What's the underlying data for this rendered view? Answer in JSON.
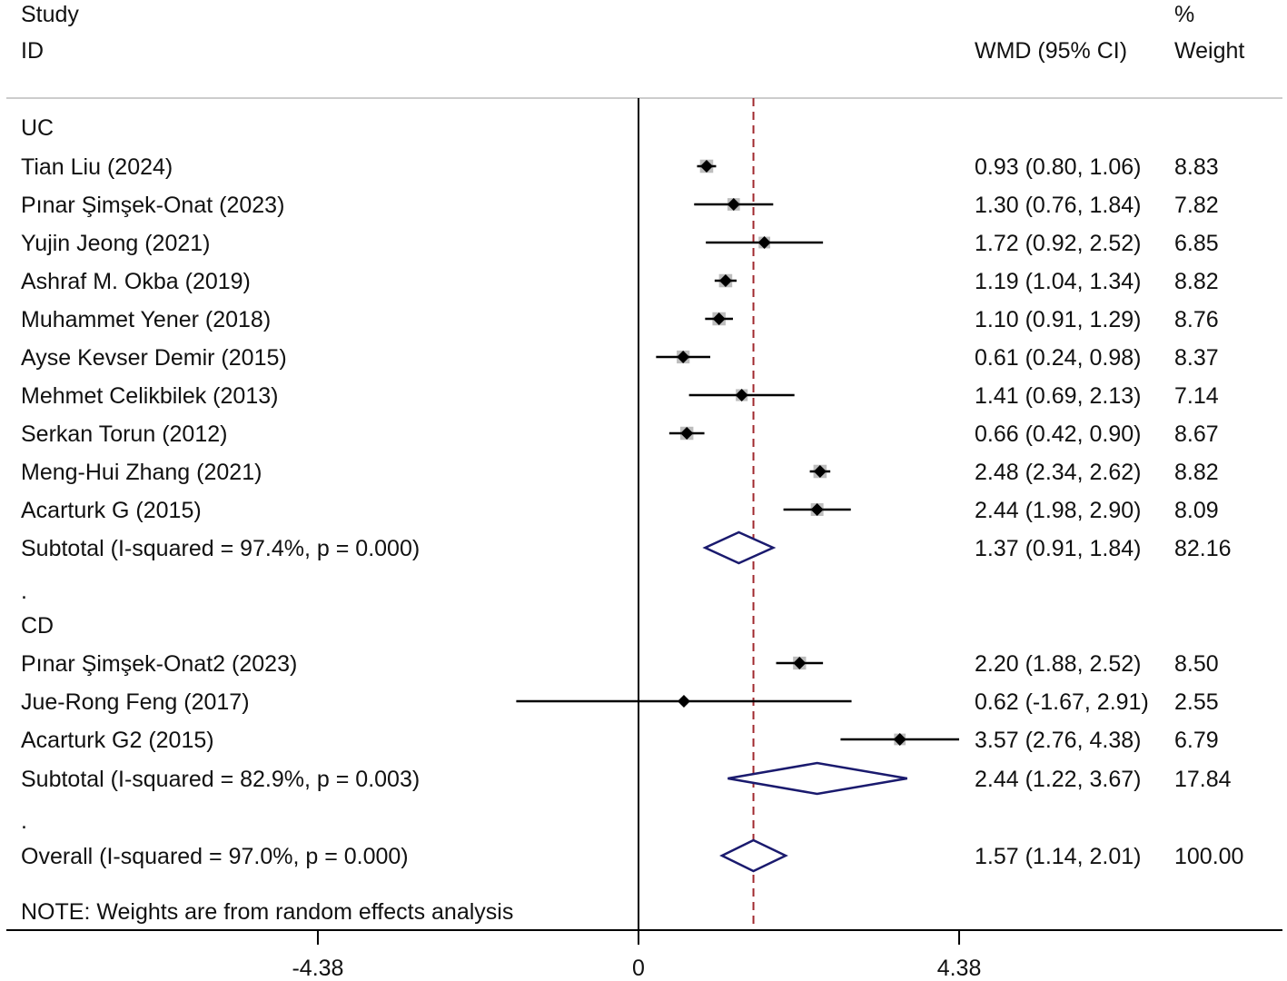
{
  "chart_data": {
    "type": "forest",
    "header": {
      "study_line1": "Study",
      "study_line2": "ID",
      "pct_line1": "%",
      "effect_label": "WMD (95% CI)",
      "weight_label": "Weight"
    },
    "groups": [
      {
        "name": "UC",
        "studies": [
          {
            "label": "Tian Liu (2024)",
            "est": 0.93,
            "lo": 0.8,
            "hi": 1.06,
            "ci_text": "0.93 (0.80, 1.06)",
            "weight": 8.83,
            "weight_text": "8.83"
          },
          {
            "label": "Pınar Şimşek-Onat (2023)",
            "est": 1.3,
            "lo": 0.76,
            "hi": 1.84,
            "ci_text": "1.30 (0.76, 1.84)",
            "weight": 7.82,
            "weight_text": "7.82"
          },
          {
            "label": "Yujin Jeong (2021)",
            "est": 1.72,
            "lo": 0.92,
            "hi": 2.52,
            "ci_text": "1.72 (0.92, 2.52)",
            "weight": 6.85,
            "weight_text": "6.85"
          },
          {
            "label": "Ashraf M. Okba (2019)",
            "est": 1.19,
            "lo": 1.04,
            "hi": 1.34,
            "ci_text": "1.19 (1.04, 1.34)",
            "weight": 8.82,
            "weight_text": "8.82"
          },
          {
            "label": "Muhammet Yener (2018)",
            "est": 1.1,
            "lo": 0.91,
            "hi": 1.29,
            "ci_text": "1.10 (0.91, 1.29)",
            "weight": 8.76,
            "weight_text": "8.76"
          },
          {
            "label": "Ayse Kevser Demir (2015)",
            "est": 0.61,
            "lo": 0.24,
            "hi": 0.98,
            "ci_text": "0.61 (0.24, 0.98)",
            "weight": 8.37,
            "weight_text": "8.37"
          },
          {
            "label": "Mehmet Celikbilek (2013)",
            "est": 1.41,
            "lo": 0.69,
            "hi": 2.13,
            "ci_text": "1.41 (0.69, 2.13)",
            "weight": 7.14,
            "weight_text": "7.14"
          },
          {
            "label": "Serkan Torun (2012)",
            "est": 0.66,
            "lo": 0.42,
            "hi": 0.9,
            "ci_text": "0.66 (0.42, 0.90)",
            "weight": 8.67,
            "weight_text": "8.67"
          },
          {
            "label": "Meng-Hui Zhang (2021)",
            "est": 2.48,
            "lo": 2.34,
            "hi": 2.62,
            "ci_text": "2.48 (2.34, 2.62)",
            "weight": 8.82,
            "weight_text": "8.82"
          },
          {
            "label": "Acarturk G (2015)",
            "est": 2.44,
            "lo": 1.98,
            "hi": 2.9,
            "ci_text": "2.44 (1.98, 2.90)",
            "weight": 8.09,
            "weight_text": "8.09"
          }
        ],
        "subtotal": {
          "label": "Subtotal  (I-squared = 97.4%, p = 0.000)",
          "est": 1.37,
          "lo": 0.91,
          "hi": 1.84,
          "ci_text": "1.37 (0.91, 1.84)",
          "weight_text": "82.16"
        },
        "separator": "."
      },
      {
        "name": "CD",
        "studies": [
          {
            "label": "Pınar Şimşek-Onat2 (2023)",
            "est": 2.2,
            "lo": 1.88,
            "hi": 2.52,
            "ci_text": "2.20 (1.88, 2.52)",
            "weight": 8.5,
            "weight_text": "8.50"
          },
          {
            "label": "Jue-Rong Feng (2017)",
            "est": 0.62,
            "lo": -1.67,
            "hi": 2.91,
            "ci_text": "0.62 (-1.67, 2.91)",
            "weight": 2.55,
            "weight_text": "2.55"
          },
          {
            "label": "Acarturk G2 (2015)",
            "est": 3.57,
            "lo": 2.76,
            "hi": 4.38,
            "ci_text": "3.57 (2.76, 4.38)",
            "weight": 6.79,
            "weight_text": "6.79"
          }
        ],
        "subtotal": {
          "label": "Subtotal  (I-squared = 82.9%, p = 0.003)",
          "est": 2.44,
          "lo": 1.22,
          "hi": 3.67,
          "ci_text": "2.44 (1.22, 3.67)",
          "weight_text": "17.84"
        },
        "separator": "."
      }
    ],
    "overall": {
      "label": "Overall  (I-squared = 97.0%, p = 0.000)",
      "est": 1.57,
      "lo": 1.14,
      "hi": 2.01,
      "ci_text": "1.57 (1.14, 2.01)",
      "weight_text": "100.00"
    },
    "note": "NOTE: Weights are from random effects analysis",
    "x_axis": {
      "ticks": [
        -4.38,
        0,
        4.38
      ],
      "tick_labels": [
        "-4.38",
        "0",
        "4.38"
      ],
      "range": [
        -8.76,
        8.76
      ]
    },
    "reference_line": 0,
    "pooled_line": 1.57,
    "colors": {
      "text": "#111111",
      "ci_line": "#000000",
      "weight_box": "#bdbdbd",
      "point": "#000000",
      "diamond": "#1a1a6e",
      "pooled_dash": "#a0282e",
      "header_rule": "#cccccc"
    }
  }
}
